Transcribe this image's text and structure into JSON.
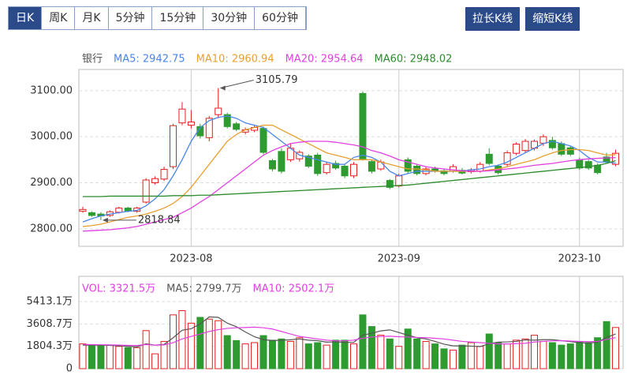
{
  "toolbar": {
    "tabs": [
      "日K",
      "周K",
      "月K",
      "5分钟",
      "15分钟",
      "30分钟",
      "60分钟"
    ],
    "selected": 0,
    "buttons": [
      "拉长K线",
      "缩短K线"
    ]
  },
  "chart_data": [
    {
      "type": "candlestick",
      "legend_title": "银行",
      "up_color": "#e02020",
      "down_color": "#2e9b30",
      "categories": [
        null,
        null,
        null,
        null,
        null,
        null,
        null,
        null,
        null,
        null,
        null,
        null,
        "2023-08",
        null,
        null,
        null,
        null,
        null,
        null,
        null,
        null,
        null,
        null,
        null,
        null,
        null,
        null,
        null,
        null,
        null,
        null,
        null,
        null,
        null,
        null,
        "2023-09",
        null,
        null,
        null,
        null,
        null,
        null,
        null,
        null,
        null,
        null,
        null,
        null,
        null,
        null,
        null,
        null,
        null,
        null,
        null,
        "2023-10",
        null,
        null,
        null,
        null
      ],
      "open": [
        2838,
        2835,
        2832,
        2829,
        2836,
        2845,
        2838,
        2858,
        2900,
        2908,
        2935,
        3030,
        3025,
        3022,
        2998,
        3048,
        3048,
        3028,
        3010,
        3014,
        3018,
        2948,
        2968,
        2950,
        2952,
        2958,
        2960,
        2922,
        2942,
        2936,
        2915,
        3094,
        2946,
        2930,
        2905,
        2893,
        2950,
        2936,
        2920,
        2930,
        2926,
        2925,
        2927,
        2924,
        2925,
        2962,
        2936,
        2940,
        2964,
        2970,
        2975,
        2986,
        2992,
        2985,
        2976,
        2950,
        2946,
        2938,
        2956,
        2940
      ],
      "high": [
        2848,
        2838,
        2836,
        2840,
        2848,
        2848,
        2848,
        2910,
        2914,
        2935,
        3028,
        3075,
        3058,
        3028,
        3045,
        3105.79,
        3052,
        3032,
        3020,
        3024,
        3022,
        2952,
        2975,
        2985,
        2970,
        2962,
        2965,
        2945,
        2948,
        2940,
        2945,
        3098,
        2950,
        2950,
        2908,
        2920,
        2955,
        2940,
        2934,
        2935,
        2930,
        2940,
        2932,
        2932,
        2945,
        2975,
        2940,
        2970,
        2988,
        2995,
        2994,
        3005,
        3000,
        2990,
        2980,
        2955,
        2950,
        2942,
        2965,
        2972
      ],
      "low": [
        2835,
        2826,
        2818.84,
        2826,
        2833,
        2836,
        2835,
        2855,
        2896,
        2904,
        2930,
        3025,
        3018,
        2996,
        2990,
        3040,
        3018,
        3012,
        3005,
        3010,
        2962,
        2925,
        2920,
        2945,
        2946,
        2932,
        2915,
        2918,
        2928,
        2910,
        2910,
        2948,
        2920,
        2926,
        2886,
        2890,
        2920,
        2916,
        2916,
        2922,
        2916,
        2922,
        2918,
        2920,
        2922,
        2938,
        2918,
        2936,
        2960,
        2966,
        2970,
        2980,
        2972,
        2958,
        2958,
        2928,
        2928,
        2918,
        2943,
        2936
      ],
      "close": [
        2842,
        2829,
        2828,
        2837,
        2845,
        2839,
        2845,
        2906,
        2909,
        2929,
        3024,
        3060,
        3032,
        3002,
        3040,
        3062,
        3022,
        3016,
        3015,
        3020,
        2966,
        2930,
        2925,
        2975,
        2966,
        2936,
        2920,
        2940,
        2932,
        2915,
        2940,
        2952,
        2925,
        2945,
        2890,
        2915,
        2925,
        2920,
        2930,
        2925,
        2920,
        2935,
        2921,
        2928,
        2940,
        2942,
        2922,
        2965,
        2984,
        2990,
        2990,
        3000,
        2976,
        2962,
        2962,
        2932,
        2932,
        2922,
        2946,
        2964
      ],
      "ma_series": [
        {
          "name": "MA5",
          "legend": "MA5: 2942.75",
          "color": "#4a86e8",
          "values": [
            2815,
            2822,
            2828,
            2832,
            2835,
            2838,
            2840,
            2850,
            2865,
            2885,
            2915,
            2950,
            2990,
            3020,
            3035,
            3042,
            3045,
            3040,
            3030,
            3025,
            3020,
            3005,
            2990,
            2975,
            2960,
            2955,
            2950,
            2945,
            2940,
            2940,
            2955,
            2960,
            2955,
            2945,
            2925,
            2915,
            2920,
            2925,
            2925,
            2925,
            2925,
            2925,
            2925,
            2928,
            2930,
            2935,
            2938,
            2945,
            2955,
            2965,
            2975,
            2985,
            2990,
            2985,
            2980,
            2970,
            2955,
            2945,
            2945,
            2942.75
          ]
        },
        {
          "name": "MA10",
          "legend": "MA10: 2960.94",
          "color": "#e8a030",
          "values": [
            2805,
            2807,
            2810,
            2815,
            2820,
            2825,
            2828,
            2832,
            2838,
            2845,
            2855,
            2870,
            2890,
            2915,
            2940,
            2965,
            2990,
            3005,
            3015,
            3020,
            3025,
            3025,
            3015,
            3005,
            2995,
            2985,
            2975,
            2965,
            2960,
            2955,
            2950,
            2950,
            2950,
            2945,
            2940,
            2935,
            2930,
            2930,
            2928,
            2925,
            2925,
            2925,
            2925,
            2925,
            2925,
            2928,
            2930,
            2935,
            2940,
            2945,
            2950,
            2958,
            2965,
            2970,
            2972,
            2972,
            2970,
            2965,
            2960,
            2960.94
          ]
        },
        {
          "name": "MA20",
          "legend": "MA20: 2954.64",
          "color": "#e040e0",
          "values": [
            2795,
            2796,
            2797,
            2798,
            2800,
            2802,
            2805,
            2810,
            2815,
            2820,
            2825,
            2835,
            2845,
            2858,
            2870,
            2885,
            2900,
            2915,
            2930,
            2945,
            2960,
            2970,
            2978,
            2985,
            2988,
            2990,
            2990,
            2990,
            2988,
            2985,
            2982,
            2978,
            2970,
            2965,
            2958,
            2950,
            2945,
            2940,
            2935,
            2932,
            2930,
            2928,
            2926,
            2925,
            2925,
            2926,
            2928,
            2930,
            2932,
            2935,
            2938,
            2940,
            2942,
            2945,
            2948,
            2950,
            2952,
            2953,
            2954,
            2954.64
          ]
        },
        {
          "name": "MA60",
          "legend": "MA60: 2948.02",
          "color": "#2e8b2e",
          "values": [
            2870,
            2870,
            2870,
            2871,
            2871,
            2871,
            2871,
            2871,
            2871,
            2871,
            2872,
            2872,
            2872,
            2873,
            2873,
            2874,
            2875,
            2876,
            2877,
            2878,
            2879,
            2880,
            2881,
            2882,
            2883,
            2884,
            2885,
            2886,
            2887,
            2888,
            2889,
            2890,
            2891,
            2892,
            2893,
            2894,
            2895,
            2897,
            2899,
            2901,
            2903,
            2905,
            2907,
            2909,
            2911,
            2913,
            2915,
            2917,
            2919,
            2921,
            2923,
            2925,
            2927,
            2929,
            2931,
            2933,
            2935,
            2938,
            2942,
            2948.02
          ]
        }
      ],
      "annotations": [
        {
          "value": 3105.79,
          "index": 15
        },
        {
          "value": 2818.84,
          "index": 2
        }
      ],
      "ylim": [
        2762,
        3146
      ],
      "yticks": [
        {
          "value": 3100,
          "label": "3100.00"
        },
        {
          "value": 3000,
          "label": "3000.00"
        },
        {
          "value": 2900,
          "label": "2900.00"
        },
        {
          "value": 2800,
          "label": "2800.00"
        }
      ]
    },
    {
      "type": "bar",
      "legend_title": "VOL: 3321.5万",
      "values": [
        2000,
        1870,
        1870,
        1900,
        1800,
        1700,
        1700,
        3070,
        1200,
        2200,
        4340,
        4680,
        3670,
        4140,
        4000,
        3870,
        2670,
        2270,
        2000,
        2100,
        2670,
        2300,
        2400,
        2200,
        2500,
        2000,
        2100,
        1900,
        2300,
        2300,
        2000,
        4340,
        3400,
        2700,
        2400,
        1800,
        3200,
        2400,
        2200,
        2000,
        1600,
        1500,
        1900,
        2100,
        1800,
        2800,
        2100,
        2000,
        2300,
        2400,
        2700,
        2200,
        2100,
        1900,
        2000,
        2200,
        2100,
        2500,
        3800,
        3321.5
      ],
      "ma_series": [
        {
          "name": "MA5",
          "legend": "MA5: 2799.7万",
          "color": "#555555",
          "values": [
            1900,
            1900,
            1900,
            1880,
            1850,
            1800,
            1760,
            2010,
            1900,
            1950,
            2490,
            3100,
            3220,
            3610,
            4180,
            4140,
            3670,
            3390,
            2960,
            2580,
            2340,
            2270,
            2290,
            2330,
            2400,
            2300,
            2260,
            2140,
            2160,
            2120,
            2120,
            2700,
            2860,
            3050,
            3130,
            2920,
            2700,
            2500,
            2400,
            2200,
            1980,
            1840,
            1840,
            1820,
            1780,
            2020,
            2140,
            2160,
            2200,
            2320,
            2300,
            2340,
            2340,
            2260,
            2180,
            2100,
            2060,
            2140,
            2520,
            2799.7
          ]
        },
        {
          "name": "MA10",
          "legend": "MA10: 2502.1万",
          "color": "#e040e0",
          "values": [
            1950,
            1940,
            1930,
            1920,
            1900,
            1880,
            1870,
            1950,
            1900,
            1920,
            2100,
            2400,
            2600,
            2800,
            3000,
            3150,
            3250,
            3300,
            3320,
            3350,
            3300,
            3200,
            3000,
            2800,
            2600,
            2500,
            2400,
            2300,
            2250,
            2250,
            2300,
            2450,
            2550,
            2600,
            2620,
            2580,
            2550,
            2520,
            2500,
            2450,
            2400,
            2300,
            2200,
            2150,
            2100,
            2050,
            2000,
            2000,
            2020,
            2050,
            2150,
            2200,
            2240,
            2260,
            2230,
            2200,
            2180,
            2200,
            2350,
            2502.1
          ]
        }
      ],
      "ylim": [
        0,
        7450
      ],
      "yticks": [
        0,
        {
          "value": 1804.3,
          "label": "1804.3万"
        },
        {
          "value": 3608.7,
          "label": "3608.7万"
        },
        {
          "value": 5413.1,
          "label": "5413.1万"
        }
      ]
    }
  ]
}
